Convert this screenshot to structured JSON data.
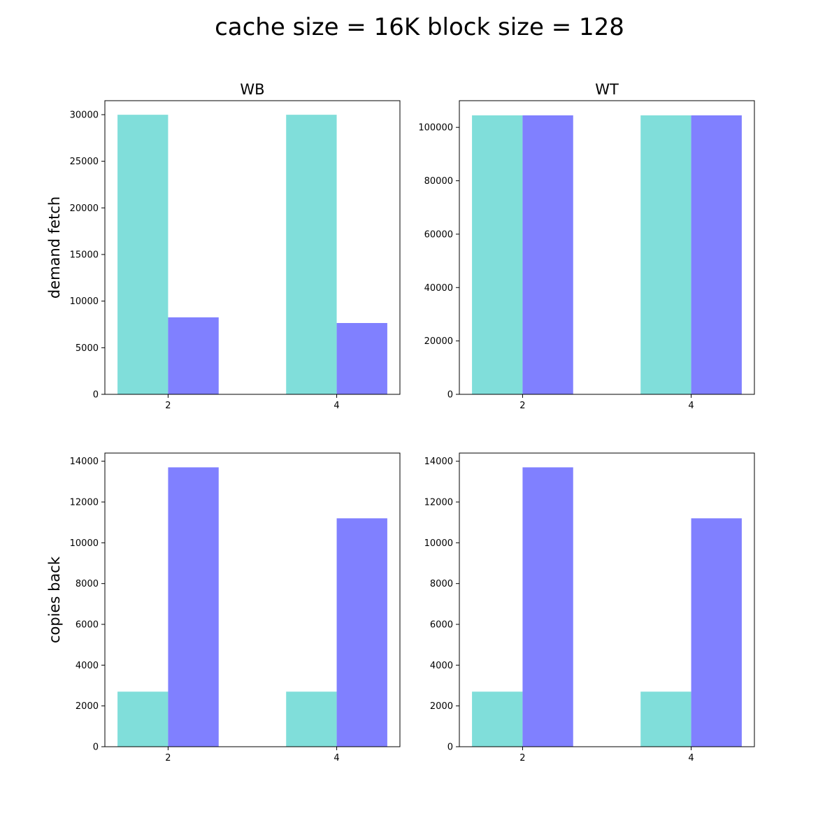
{
  "figure": {
    "title": "cache size = 16K    block size = 128",
    "row_labels": [
      "demand fetch",
      "copies back"
    ],
    "col_titles": [
      "WB",
      "WT"
    ],
    "colors": [
      "#80deda",
      "#8080ff"
    ]
  },
  "chart_data": [
    {
      "type": "bar",
      "title": "WB",
      "ylabel": "demand fetch",
      "xlabel": "",
      "categories": [
        "2",
        "4"
      ],
      "series": [
        {
          "values": [
            29990,
            29990
          ]
        },
        {
          "values": [
            8260,
            7650
          ]
        }
      ],
      "ylim": [
        0,
        31500
      ],
      "yticks": [
        0,
        5000,
        10000,
        15000,
        20000,
        25000,
        30000
      ],
      "grid": false
    },
    {
      "type": "bar",
      "title": "WT",
      "ylabel": "",
      "xlabel": "",
      "categories": [
        "2",
        "4"
      ],
      "series": [
        {
          "values": [
            104500,
            104500
          ]
        },
        {
          "values": [
            104500,
            104500
          ]
        }
      ],
      "ylim": [
        0,
        110000
      ],
      "yticks": [
        0,
        20000,
        40000,
        60000,
        80000,
        100000
      ],
      "grid": false
    },
    {
      "type": "bar",
      "title": "",
      "ylabel": "copies back",
      "xlabel": "",
      "categories": [
        "2",
        "4"
      ],
      "series": [
        {
          "values": [
            2700,
            2700
          ]
        },
        {
          "values": [
            13700,
            11200
          ]
        }
      ],
      "ylim": [
        0,
        14400
      ],
      "yticks": [
        0,
        2000,
        4000,
        6000,
        8000,
        10000,
        12000,
        14000
      ],
      "grid": false
    },
    {
      "type": "bar",
      "title": "",
      "ylabel": "",
      "xlabel": "",
      "categories": [
        "2",
        "4"
      ],
      "series": [
        {
          "values": [
            2700,
            2700
          ]
        },
        {
          "values": [
            13700,
            11200
          ]
        }
      ],
      "ylim": [
        0,
        14400
      ],
      "yticks": [
        0,
        2000,
        4000,
        6000,
        8000,
        10000,
        12000,
        14000
      ],
      "grid": false
    }
  ]
}
